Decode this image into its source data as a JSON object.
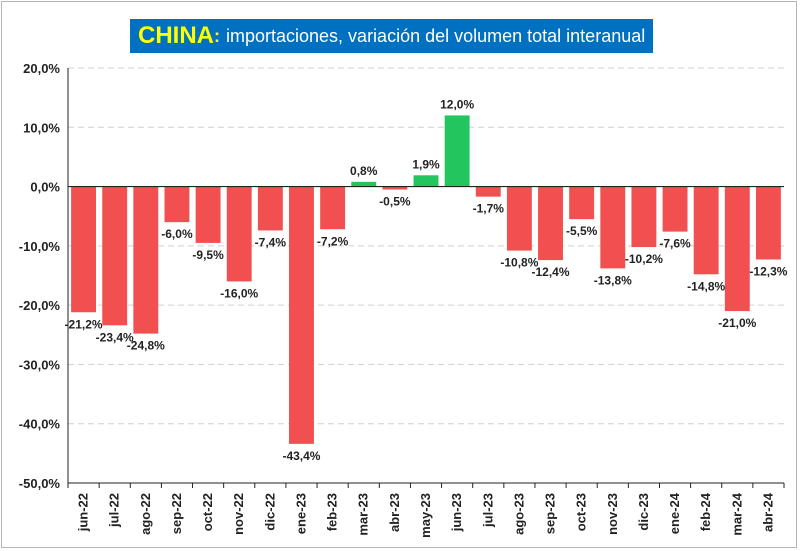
{
  "chart_data": {
    "type": "bar",
    "title": "CHINA",
    "subtitle": "importaciones, variación del volumen total interanual",
    "categories": [
      "jun-22",
      "jul-22",
      "ago-22",
      "sep-22",
      "oct-22",
      "nov-22",
      "dic-22",
      "ene-23",
      "feb-23",
      "mar-23",
      "abr-23",
      "may-23",
      "jun-23",
      "jul-23",
      "ago-23",
      "sep-23",
      "oct-23",
      "nov-23",
      "dic-23",
      "ene-24",
      "feb-24",
      "mar-24",
      "abr-24"
    ],
    "values": [
      -21.2,
      -23.4,
      -24.8,
      -6.0,
      -9.5,
      -16.0,
      -7.4,
      -43.4,
      -7.2,
      0.8,
      -0.5,
      1.9,
      12.0,
      -1.7,
      -10.8,
      -12.4,
      -5.5,
      -13.8,
      -10.2,
      -7.6,
      -14.8,
      -21.0,
      -12.3
    ],
    "value_labels": [
      "-21,2%",
      "-23,4%",
      "-24,8%",
      "-6,0%",
      "-9,5%",
      "-16,0%",
      "-7,4%",
      "-43,4%",
      "-7,2%",
      "0,8%",
      "-0,5%",
      "1,9%",
      "12,0%",
      "-1,7%",
      "-10,8%",
      "-12,4%",
      "-5,5%",
      "-13,8%",
      "-10,2%",
      "-7,6%",
      "-14,8%",
      "-21,0%",
      "-12,3%"
    ],
    "ylim": [
      -50,
      20
    ],
    "yticks": [
      20,
      10,
      0,
      -10,
      -20,
      -30,
      -40,
      -50
    ],
    "ytick_labels": [
      "20,0%",
      "10,0%",
      "0,0%",
      "-10,0%",
      "-20,0%",
      "-30,0%",
      "-40,0%",
      "-50,0%"
    ],
    "xlabel": "",
    "ylabel": "",
    "grid": true,
    "legend": "none",
    "colors": {
      "positive": "#22c55e",
      "negative": "#f25050",
      "title_bg": "#0070c0",
      "title_main": "#ffff00",
      "title_sub": "#ffffff",
      "grid": "#d0d0d0",
      "axis": "#222222"
    }
  }
}
